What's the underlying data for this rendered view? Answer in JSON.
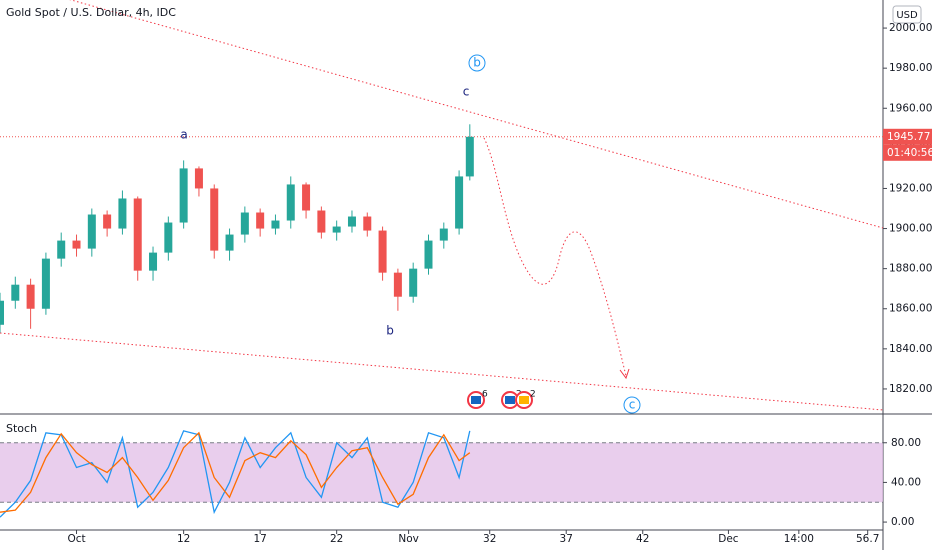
{
  "chart_data": {
    "type": "candlestick",
    "title": "Gold Spot / U.S. Dollar, 4h, IDC",
    "currency_button": "USD",
    "countdown": "01:40:56",
    "up_color": "#26a69a",
    "down_color": "#ef5350",
    "xlim": [
      0,
      57.7
    ],
    "xticks": [
      {
        "value": 5,
        "label": "Oct"
      },
      12,
      17,
      22,
      {
        "value": 26.7,
        "label": "Nov"
      },
      32,
      37,
      42,
      {
        "value": 47.6,
        "label": "Dec"
      },
      {
        "value": 52.2,
        "label": "14:00"
      },
      56.7
    ],
    "ylim": [
      1808,
      2014
    ],
    "yticks": [
      {
        "value": 1820,
        "label": "1820.00"
      },
      {
        "value": 1840,
        "label": "1840.00"
      },
      {
        "value": 1860,
        "label": "1860.00"
      },
      {
        "value": 1880,
        "label": "1880.00"
      },
      {
        "value": 1900,
        "label": "1900.00"
      },
      {
        "value": 1920,
        "label": "1920.00"
      },
      {
        "value": 1940,
        "label": "1940.00"
      },
      {
        "value": 1960,
        "label": "1960.00"
      },
      {
        "value": 1980,
        "label": "1980.00"
      },
      {
        "value": 2000,
        "label": "2000.00"
      }
    ],
    "candles": {
      "x": [
        0,
        1,
        2,
        3,
        4,
        5,
        6,
        7,
        8,
        9,
        10,
        11,
        12,
        13,
        14,
        15,
        16,
        17,
        18,
        19,
        20,
        21,
        22,
        23,
        24,
        25,
        26,
        27,
        28,
        29,
        30,
        30.7
      ],
      "open": [
        1852,
        1864,
        1872,
        1860,
        1885,
        1894,
        1890,
        1907,
        1900,
        1915,
        1879,
        1888,
        1903,
        1930,
        1920,
        1889,
        1897,
        1908,
        1900,
        1904,
        1922,
        1909,
        1898,
        1901,
        1906,
        1899,
        1878,
        1866,
        1880,
        1894,
        1900,
        1926
      ],
      "high": [
        1868,
        1876,
        1875,
        1888,
        1898,
        1897,
        1910,
        1909,
        1919,
        1916,
        1891,
        1906,
        1934,
        1931,
        1922,
        1900,
        1911,
        1910,
        1907,
        1926,
        1923,
        1911,
        1904,
        1909,
        1908,
        1901,
        1880,
        1883,
        1897,
        1903,
        1929,
        1952
      ],
      "low": [
        1848,
        1860,
        1850,
        1857,
        1881,
        1886,
        1886,
        1896,
        1897,
        1874,
        1874,
        1884,
        1900,
        1916,
        1885,
        1884,
        1893,
        1896,
        1897,
        1900,
        1905,
        1895,
        1894,
        1898,
        1896,
        1874,
        1859,
        1863,
        1877,
        1890,
        1897,
        1924
      ],
      "close": [
        1864,
        1872,
        1860,
        1885,
        1894,
        1890,
        1907,
        1900,
        1915,
        1879,
        1888,
        1903,
        1930,
        1920,
        1889,
        1897,
        1908,
        1900,
        1904,
        1922,
        1909,
        1898,
        1901,
        1906,
        1899,
        1878,
        1866,
        1880,
        1894,
        1900,
        1926,
        1945.77
      ]
    },
    "wave_labels": [
      "a",
      "b",
      "c",
      "b",
      "c"
    ],
    "events": [
      "6",
      "2",
      "2"
    ],
    "indicator": {
      "title": "Stoch",
      "ylim": [
        -8,
        108
      ],
      "yticks": [
        {
          "value": 0,
          "label": "0.00"
        },
        {
          "value": 40,
          "label": "40.00"
        },
        {
          "value": 80,
          "label": "80.00"
        }
      ],
      "bands": [
        20,
        80
      ],
      "band_color": "#e1bee7",
      "series": [
        {
          "color": "#2196f3",
          "values": [
            5,
            20,
            42,
            90,
            88,
            55,
            60,
            40,
            85,
            15,
            30,
            55,
            92,
            88,
            10,
            40,
            85,
            55,
            75,
            90,
            45,
            25,
            80,
            65,
            85,
            20,
            15,
            40,
            90,
            85,
            45,
            92
          ]
        },
        {
          "color": "#ff6d00",
          "values": [
            10,
            12,
            30,
            65,
            89,
            70,
            58,
            50,
            65,
            45,
            22,
            42,
            75,
            90,
            45,
            25,
            62,
            70,
            65,
            82,
            68,
            35,
            55,
            72,
            75,
            45,
            18,
            28,
            65,
            88,
            62,
            70
          ]
        }
      ]
    }
  }
}
